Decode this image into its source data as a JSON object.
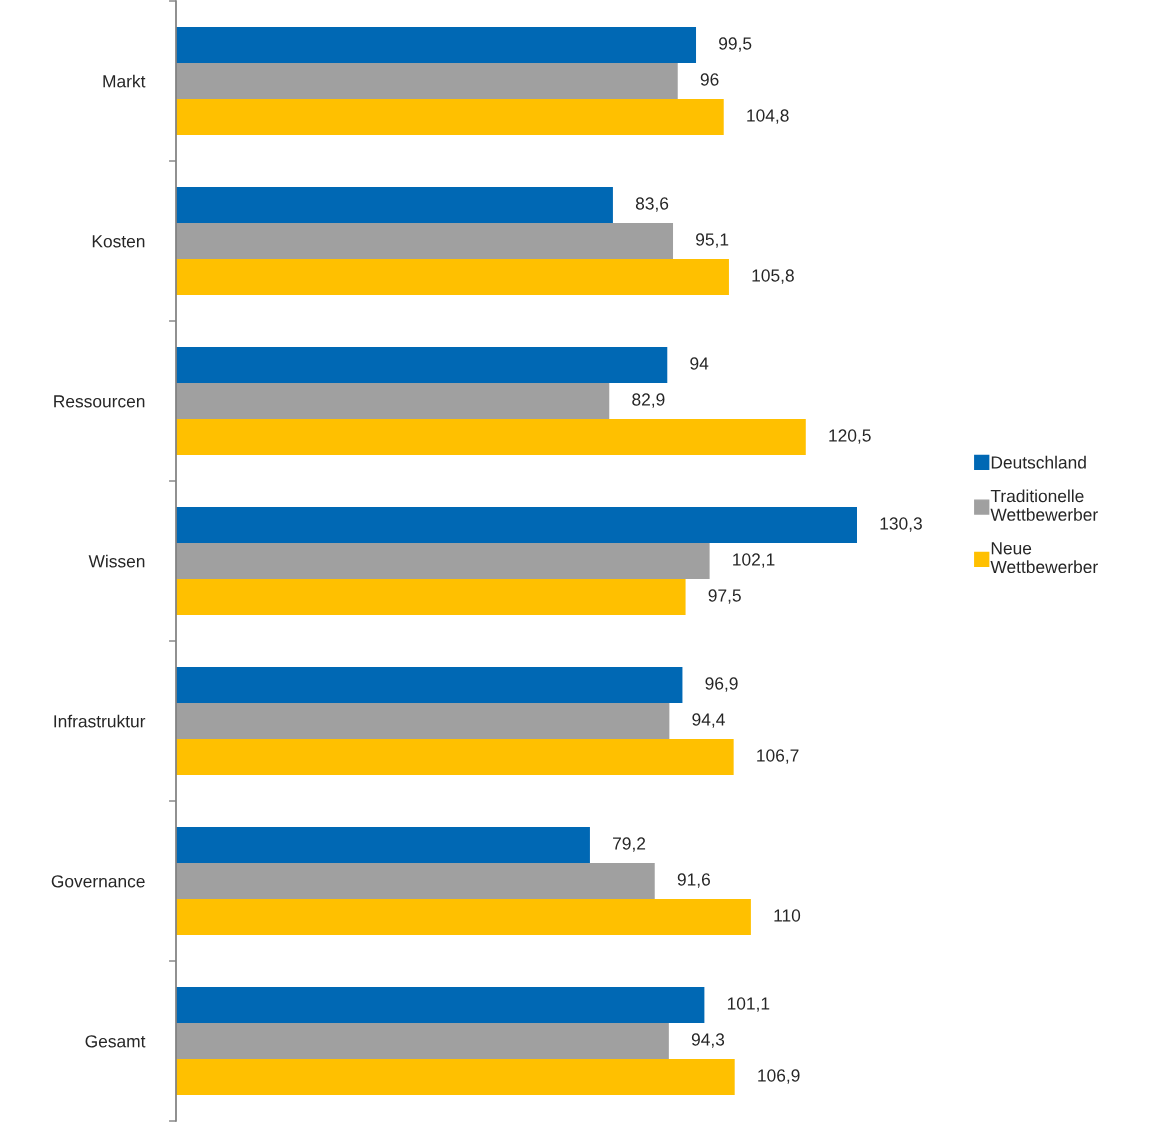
{
  "chart_data": {
    "type": "bar",
    "orientation": "horizontal",
    "categories": [
      "Markt",
      "Kosten",
      "Ressourcen",
      "Wissen",
      "Infrastruktur",
      "Governance",
      "Gesamt"
    ],
    "series": [
      {
        "name": "Deutschland",
        "color": "#0068b4",
        "values": [
          99.5,
          83.6,
          94,
          130.3,
          96.9,
          79.2,
          101.1
        ],
        "value_labels": [
          "99,5",
          "83,6",
          "94",
          "130,3",
          "96,9",
          "79,2",
          "101,1"
        ]
      },
      {
        "name": "Traditionelle Wettbewerber",
        "color": "#a0a0a0",
        "values": [
          96,
          95.1,
          82.9,
          102.1,
          94.4,
          91.6,
          94.3
        ],
        "value_labels": [
          "96",
          "95,1",
          "82,9",
          "102,1",
          "94,4",
          "91,6",
          "94,3"
        ]
      },
      {
        "name": "Neue Wettbewerber",
        "color": "#ffc000",
        "values": [
          104.8,
          105.8,
          120.5,
          97.5,
          106.7,
          110,
          106.9
        ],
        "value_labels": [
          "104,8",
          "105,8",
          "120,5",
          "97,5",
          "106,7",
          "110",
          "106,9"
        ]
      }
    ],
    "legend": "right",
    "tick_labels": "y"
  }
}
